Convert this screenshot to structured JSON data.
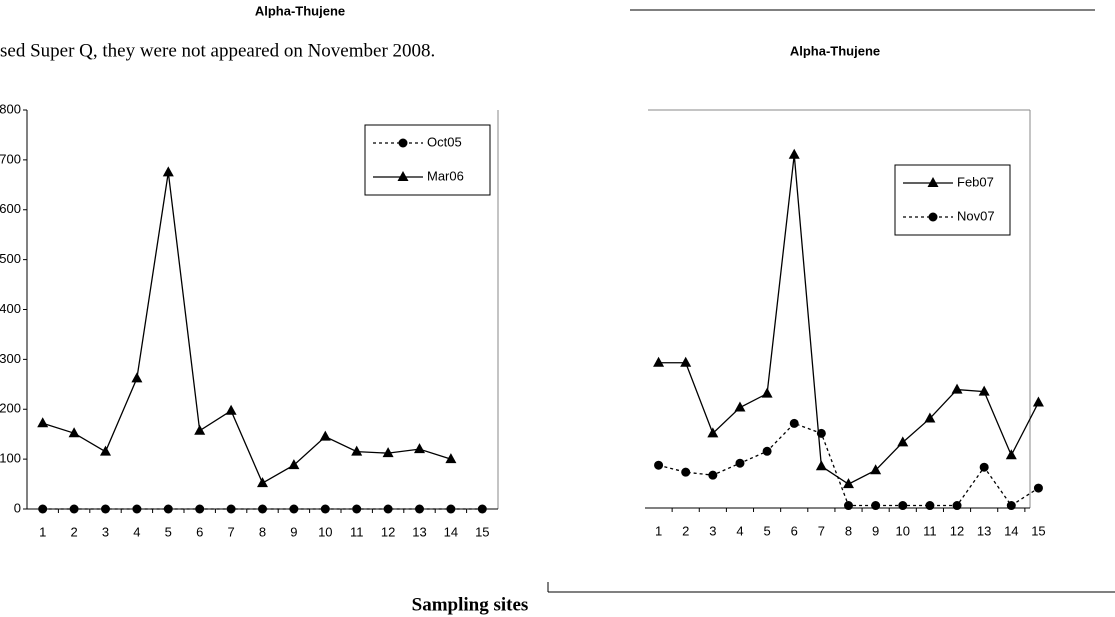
{
  "document": {
    "text_line": "sed Super Q, they were not appeared on November 2008.",
    "x_axis_caption": "Sampling sites"
  },
  "chart_data": [
    {
      "type": "line",
      "title": "Alpha-Thujene",
      "categories": [
        "1",
        "2",
        "3",
        "4",
        "5",
        "6",
        "7",
        "8",
        "9",
        "10",
        "11",
        "12",
        "13",
        "14",
        "15"
      ],
      "series": [
        {
          "name": "Oct05",
          "color": "#000000",
          "dashed": true,
          "marker": "circle",
          "values": [
            0,
            0,
            0,
            0,
            0,
            0,
            0,
            0,
            0,
            0,
            0,
            0,
            0,
            0,
            0
          ]
        },
        {
          "name": "Mar06",
          "color": "#000000",
          "dashed": false,
          "marker": "triangle",
          "values": [
            172,
            152,
            115,
            262,
            675,
            157,
            197,
            52,
            88,
            145,
            115,
            112,
            120,
            100,
            null
          ]
        }
      ],
      "ylim": [
        0,
        800
      ],
      "yticks": [
        0,
        100,
        200,
        300,
        400,
        500,
        600,
        700,
        800
      ],
      "legend": "top-right"
    },
    {
      "type": "line",
      "title": "Alpha-Thujene",
      "categories": [
        "1",
        "2",
        "3",
        "4",
        "5",
        "6",
        "7",
        "8",
        "9",
        "10",
        "11",
        "12",
        "13",
        "14",
        "15"
      ],
      "series": [
        {
          "name": "Feb07",
          "color": "#000000",
          "dashed": false,
          "marker": "triangle",
          "values": [
            292,
            292,
            150,
            202,
            230,
            710,
            84,
            48,
            76,
            132,
            180,
            238,
            234,
            106,
            212
          ]
        },
        {
          "name": "Nov07",
          "color": "#000000",
          "dashed": true,
          "marker": "circle",
          "values": [
            86,
            72,
            66,
            90,
            114,
            170,
            150,
            5,
            5,
            5,
            5,
            5,
            82,
            5,
            40
          ]
        }
      ],
      "ylim": [
        0,
        800
      ],
      "legend": "top-right"
    }
  ]
}
